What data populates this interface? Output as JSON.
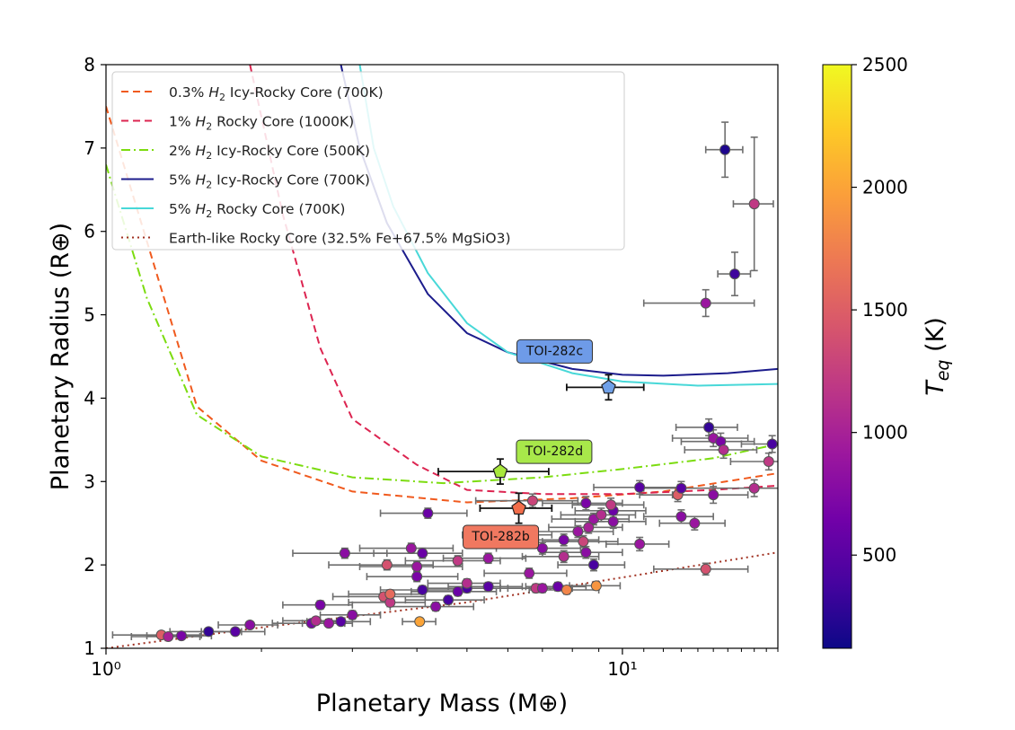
{
  "chart_data": {
    "type": "scatter",
    "xscale": "log",
    "xlim": [
      1,
      20
    ],
    "ylim": [
      1,
      8
    ],
    "xlabel": "Planetary Mass (M⊕)",
    "ylabel": "Planetary Radius (R⊕)",
    "x_ticks": [
      {
        "value": 1,
        "label": "10⁰"
      },
      {
        "value": 10,
        "label": "10¹"
      }
    ],
    "y_ticks": [
      {
        "value": 1,
        "label": "1"
      },
      {
        "value": 2,
        "label": "2"
      },
      {
        "value": 3,
        "label": "3"
      },
      {
        "value": 4,
        "label": "4"
      },
      {
        "value": 5,
        "label": "5"
      },
      {
        "value": 6,
        "label": "6"
      },
      {
        "value": 7,
        "label": "7"
      },
      {
        "value": 8,
        "label": "8"
      }
    ],
    "colorbar": {
      "label": "T_eq (K)",
      "range": [
        120,
        2500
      ],
      "ticks": [
        {
          "value": 500,
          "label": "500"
        },
        {
          "value": 1000,
          "label": "1000"
        },
        {
          "value": 1500,
          "label": "1500"
        },
        {
          "value": 2000,
          "label": "2000"
        },
        {
          "value": 2500,
          "label": "2500"
        }
      ],
      "colors": [
        "#0d0887",
        "#46039f",
        "#7201a8",
        "#9c179e",
        "#bd3786",
        "#d8576b",
        "#ed7953",
        "#fb9f3a",
        "#fdca26",
        "#f0f921"
      ]
    },
    "legend_position": "top-left",
    "models": [
      {
        "name": "0.3% H₂ Icy-Rocky Core (700K)",
        "legend_parts": [
          {
            "t": "0.3% "
          },
          {
            "t": "H",
            "i": true
          },
          {
            "t": "2",
            "sub": true
          },
          {
            "t": " Icy-Rocky Core (700K)"
          }
        ],
        "color": "#f05a1e",
        "dash": "8 5",
        "x": [
          1,
          1.5,
          2,
          3,
          5,
          8,
          12,
          20
        ],
        "y": [
          7.5,
          3.9,
          3.25,
          2.88,
          2.75,
          2.8,
          2.88,
          3.1
        ]
      },
      {
        "name": "1% H₂ Rocky Core (1000K)",
        "legend_parts": [
          {
            "t": "1% "
          },
          {
            "t": "H",
            "i": true
          },
          {
            "t": "2",
            "sub": true
          },
          {
            "t": " Rocky Core (1000K)"
          }
        ],
        "color": "#dc2450",
        "dash": "8 5",
        "x": [
          1.9,
          2.2,
          2.6,
          3,
          4,
          5,
          7,
          10,
          15,
          20
        ],
        "y": [
          8,
          6.2,
          4.6,
          3.75,
          3.2,
          2.9,
          2.85,
          2.85,
          2.9,
          2.95
        ]
      },
      {
        "name": "2% H₂ Icy-Rocky Core (500K)",
        "legend_parts": [
          {
            "t": "2% "
          },
          {
            "t": "H",
            "i": true
          },
          {
            "t": "2",
            "sub": true
          },
          {
            "t": " Icy-Rocky Core (500K)"
          }
        ],
        "color": "#7cdc10",
        "dash": "10 4 2 4",
        "x": [
          1,
          1.2,
          1.5,
          2,
          3,
          4.5,
          7,
          10,
          15,
          20
        ],
        "y": [
          6.8,
          5.2,
          3.8,
          3.3,
          3.05,
          2.98,
          3.05,
          3.15,
          3.28,
          3.45
        ]
      },
      {
        "name": "5% H₂ Icy-Rocky Core (700K)",
        "legend_parts": [
          {
            "t": "5% "
          },
          {
            "t": "H",
            "i": true
          },
          {
            "t": "2",
            "sub": true
          },
          {
            "t": " Icy-Rocky Core (700K)"
          }
        ],
        "color": "#1c1c8c",
        "dash": "",
        "x": [
          2.85,
          3.1,
          3.5,
          4.2,
          5,
          6,
          8,
          10,
          12,
          16,
          20
        ],
        "y": [
          8,
          7,
          6.1,
          5.25,
          4.78,
          4.55,
          4.35,
          4.28,
          4.27,
          4.3,
          4.35
        ]
      },
      {
        "name": "5% H₂ Rocky Core (700K)",
        "legend_parts": [
          {
            "t": "5% "
          },
          {
            "t": "H",
            "i": true
          },
          {
            "t": "2",
            "sub": true
          },
          {
            "t": " Rocky Core (700K)"
          }
        ],
        "color": "#48d8d8",
        "dash": "",
        "x": [
          3.1,
          3.3,
          3.6,
          4.2,
          5,
          6,
          8,
          10,
          14,
          20
        ],
        "y": [
          8,
          7,
          6.3,
          5.5,
          4.9,
          4.55,
          4.3,
          4.2,
          4.15,
          4.17
        ]
      },
      {
        "name": "Earth-like Rocky Core (32.5% Fe+67.5% MgSiO3)",
        "legend_parts": [
          {
            "t": "Earth-like Rocky Core (32.5% Fe+67.5% MgSiO3)"
          }
        ],
        "color": "#a03020",
        "dash": "2 4",
        "x": [
          1,
          2,
          5,
          10,
          20
        ],
        "y": [
          1,
          1.25,
          1.55,
          1.85,
          2.15
        ]
      }
    ],
    "highlighted": [
      {
        "name": "TOI-282b",
        "label": "TOI-282b",
        "x": 6.3,
        "y": 2.68,
        "xerr": 1.0,
        "yerr": 0.18,
        "color": "#f26d4a",
        "label_bg": "#f07860"
      },
      {
        "name": "TOI-282c",
        "label": "TOI-282c",
        "x": 9.4,
        "y": 4.13,
        "xerr": 1.6,
        "yerr": 0.15,
        "color": "#6fa0e8",
        "label_bg": "#6e9be8"
      },
      {
        "name": "TOI-282d",
        "label": "TOI-282d",
        "x": 5.8,
        "y": 3.12,
        "xerr": 1.4,
        "yerr": 0.15,
        "color": "#a8e83c",
        "label_bg": "#a8e84a"
      }
    ],
    "points": [
      {
        "x": 1.28,
        "y": 1.16,
        "xerr": 0.25,
        "yerr": 0.03,
        "t": 1500
      },
      {
        "x": 1.32,
        "y": 1.14,
        "xerr": 0.2,
        "yerr": 0.03,
        "t": 1000
      },
      {
        "x": 1.4,
        "y": 1.15,
        "xerr": 0.2,
        "yerr": 0.03,
        "t": 700
      },
      {
        "x": 1.58,
        "y": 1.2,
        "xerr": 0.25,
        "yerr": 0.03,
        "t": 300
      },
      {
        "x": 1.78,
        "y": 1.2,
        "xerr": 0.25,
        "yerr": 0.04,
        "t": 500
      },
      {
        "x": 1.9,
        "y": 1.28,
        "xerr": 0.25,
        "yerr": 0.04,
        "t": 800
      },
      {
        "x": 2.5,
        "y": 1.3,
        "xerr": 0.4,
        "yerr": 0.04,
        "t": 700
      },
      {
        "x": 2.55,
        "y": 1.33,
        "xerr": 0.35,
        "yerr": 0.04,
        "t": 1100
      },
      {
        "x": 2.7,
        "y": 1.3,
        "xerr": 0.3,
        "yerr": 0.04,
        "t": 900
      },
      {
        "x": 2.85,
        "y": 1.32,
        "xerr": 0.4,
        "yerr": 0.04,
        "t": 500
      },
      {
        "x": 3.0,
        "y": 1.4,
        "xerr": 0.4,
        "yerr": 0.05,
        "t": 800
      },
      {
        "x": 2.6,
        "y": 1.52,
        "xerr": 0.4,
        "yerr": 0.05,
        "t": 700
      },
      {
        "x": 3.45,
        "y": 1.62,
        "xerr": 0.7,
        "yerr": 0.05,
        "t": 1400
      },
      {
        "x": 3.55,
        "y": 1.55,
        "xerr": 0.6,
        "yerr": 0.05,
        "t": 1200
      },
      {
        "x": 3.55,
        "y": 1.65,
        "xerr": 0.6,
        "yerr": 0.05,
        "t": 1600
      },
      {
        "x": 4.05,
        "y": 1.32,
        "xerr": 0.3,
        "yerr": 0.04,
        "t": 2000
      },
      {
        "x": 4.1,
        "y": 1.7,
        "xerr": 0.7,
        "yerr": 0.05,
        "t": 400
      },
      {
        "x": 4.35,
        "y": 1.5,
        "xerr": 0.8,
        "yerr": 0.05,
        "t": 800
      },
      {
        "x": 4.6,
        "y": 1.58,
        "xerr": 0.8,
        "yerr": 0.05,
        "t": 400
      },
      {
        "x": 4.8,
        "y": 1.68,
        "xerr": 0.9,
        "yerr": 0.05,
        "t": 600
      },
      {
        "x": 5.0,
        "y": 1.72,
        "xerr": 0.8,
        "yerr": 0.05,
        "t": 400
      },
      {
        "x": 5.0,
        "y": 1.78,
        "xerr": 0.8,
        "yerr": 0.05,
        "t": 1100
      },
      {
        "x": 5.5,
        "y": 1.74,
        "xerr": 0.9,
        "yerr": 0.05,
        "t": 500
      },
      {
        "x": 5.5,
        "y": 2.08,
        "xerr": 1.0,
        "yerr": 0.06,
        "t": 900
      },
      {
        "x": 4.0,
        "y": 1.86,
        "xerr": 0.8,
        "yerr": 0.06,
        "t": 700
      },
      {
        "x": 4.0,
        "y": 1.98,
        "xerr": 0.9,
        "yerr": 0.06,
        "t": 900
      },
      {
        "x": 3.5,
        "y": 2.0,
        "xerr": 0.8,
        "yerr": 0.06,
        "t": 1400
      },
      {
        "x": 4.8,
        "y": 2.05,
        "xerr": 1.0,
        "yerr": 0.06,
        "t": 1200
      },
      {
        "x": 2.9,
        "y": 2.14,
        "xerr": 0.6,
        "yerr": 0.06,
        "t": 800
      },
      {
        "x": 3.9,
        "y": 2.2,
        "xerr": 0.8,
        "yerr": 0.06,
        "t": 900
      },
      {
        "x": 4.1,
        "y": 2.14,
        "xerr": 0.8,
        "yerr": 0.06,
        "t": 600
      },
      {
        "x": 4.2,
        "y": 2.62,
        "xerr": 0.8,
        "yerr": 0.06,
        "t": 600
      },
      {
        "x": 6.1,
        "y": 2.36,
        "xerr": 1.2,
        "yerr": 0.07,
        "t": 400
      },
      {
        "x": 6.6,
        "y": 1.9,
        "xerr": 1.2,
        "yerr": 0.06,
        "t": 900
      },
      {
        "x": 6.8,
        "y": 1.72,
        "xerr": 1.0,
        "yerr": 0.05,
        "t": 1200
      },
      {
        "x": 7.0,
        "y": 1.72,
        "xerr": 1.0,
        "yerr": 0.05,
        "t": 900
      },
      {
        "x": 7.5,
        "y": 1.74,
        "xerr": 1.0,
        "yerr": 0.05,
        "t": 600
      },
      {
        "x": 7.8,
        "y": 1.7,
        "xerr": 1.2,
        "yerr": 0.05,
        "t": 1800
      },
      {
        "x": 8.9,
        "y": 1.75,
        "xerr": 1.0,
        "yerr": 0.05,
        "t": 1900
      },
      {
        "x": 7.0,
        "y": 2.2,
        "xerr": 1.3,
        "yerr": 0.07,
        "t": 800
      },
      {
        "x": 7.7,
        "y": 2.1,
        "xerr": 1.3,
        "yerr": 0.07,
        "t": 1100
      },
      {
        "x": 7.7,
        "y": 2.3,
        "xerr": 1.3,
        "yerr": 0.07,
        "t": 700
      },
      {
        "x": 8.2,
        "y": 2.4,
        "xerr": 1.4,
        "yerr": 0.07,
        "t": 900
      },
      {
        "x": 8.4,
        "y": 2.28,
        "xerr": 1.4,
        "yerr": 0.07,
        "t": 1300
      },
      {
        "x": 8.6,
        "y": 2.45,
        "xerr": 1.4,
        "yerr": 0.07,
        "t": 1000
      },
      {
        "x": 8.8,
        "y": 2.55,
        "xerr": 1.5,
        "yerr": 0.07,
        "t": 900
      },
      {
        "x": 8.8,
        "y": 2.0,
        "xerr": 1.3,
        "yerr": 0.07,
        "t": 400
      },
      {
        "x": 8.5,
        "y": 2.15,
        "xerr": 1.5,
        "yerr": 0.07,
        "t": 800
      },
      {
        "x": 9.1,
        "y": 2.6,
        "xerr": 1.5,
        "yerr": 0.08,
        "t": 1100
      },
      {
        "x": 9.6,
        "y": 2.52,
        "xerr": 1.5,
        "yerr": 0.08,
        "t": 800
      },
      {
        "x": 9.6,
        "y": 2.65,
        "xerr": 1.5,
        "yerr": 0.08,
        "t": 600
      },
      {
        "x": 9.5,
        "y": 2.72,
        "xerr": 1.5,
        "yerr": 0.08,
        "t": 1200
      },
      {
        "x": 8.5,
        "y": 2.74,
        "xerr": 1.5,
        "yerr": 0.08,
        "t": 700
      },
      {
        "x": 6.7,
        "y": 2.77,
        "xerr": 1.5,
        "yerr": 0.08,
        "t": 1300
      },
      {
        "x": 10.8,
        "y": 2.25,
        "xerr": 1.5,
        "yerr": 0.08,
        "t": 900
      },
      {
        "x": 10.8,
        "y": 2.93,
        "xerr": 2.0,
        "yerr": 0.08,
        "t": 500
      },
      {
        "x": 12.8,
        "y": 2.84,
        "xerr": 2.0,
        "yerr": 0.08,
        "t": 1500
      },
      {
        "x": 13.0,
        "y": 2.92,
        "xerr": 2.0,
        "yerr": 0.08,
        "t": 500
      },
      {
        "x": 13.0,
        "y": 2.58,
        "xerr": 2.0,
        "yerr": 0.08,
        "t": 800
      },
      {
        "x": 13.8,
        "y": 2.5,
        "xerr": 2.0,
        "yerr": 0.08,
        "t": 900
      },
      {
        "x": 15.0,
        "y": 2.84,
        "xerr": 2.5,
        "yerr": 0.1,
        "t": 800
      },
      {
        "x": 14.5,
        "y": 1.95,
        "xerr": 3.0,
        "yerr": 0.07,
        "t": 1400
      },
      {
        "x": 14.7,
        "y": 3.65,
        "xerr": 2.0,
        "yerr": 0.1,
        "t": 300
      },
      {
        "x": 15.0,
        "y": 3.52,
        "xerr": 2.5,
        "yerr": 0.1,
        "t": 900
      },
      {
        "x": 15.5,
        "y": 3.48,
        "xerr": 2.5,
        "yerr": 0.1,
        "t": 700
      },
      {
        "x": 15.7,
        "y": 3.38,
        "xerr": 2.5,
        "yerr": 0.1,
        "t": 1100
      },
      {
        "x": 18.0,
        "y": 2.92,
        "xerr": 3.0,
        "yerr": 0.1,
        "t": 1100
      },
      {
        "x": 19.2,
        "y": 3.24,
        "xerr": 3.0,
        "yerr": 0.1,
        "t": 1200
      },
      {
        "x": 19.5,
        "y": 3.45,
        "xerr": 2.5,
        "yerr": 0.1,
        "t": 400
      },
      {
        "x": 15.8,
        "y": 6.98,
        "xerr": 1.3,
        "yerr": 0.33,
        "t": 200
      },
      {
        "x": 18.0,
        "y": 6.33,
        "xerr": 1.6,
        "yerr": 0.8,
        "t": 1200
      },
      {
        "x": 16.5,
        "y": 5.49,
        "xerr": 1.2,
        "yerr": 0.26,
        "t": 350
      },
      {
        "x": 14.5,
        "y": 5.14,
        "xerr": 3.5,
        "yerr": 0.16,
        "t": 900
      }
    ]
  }
}
